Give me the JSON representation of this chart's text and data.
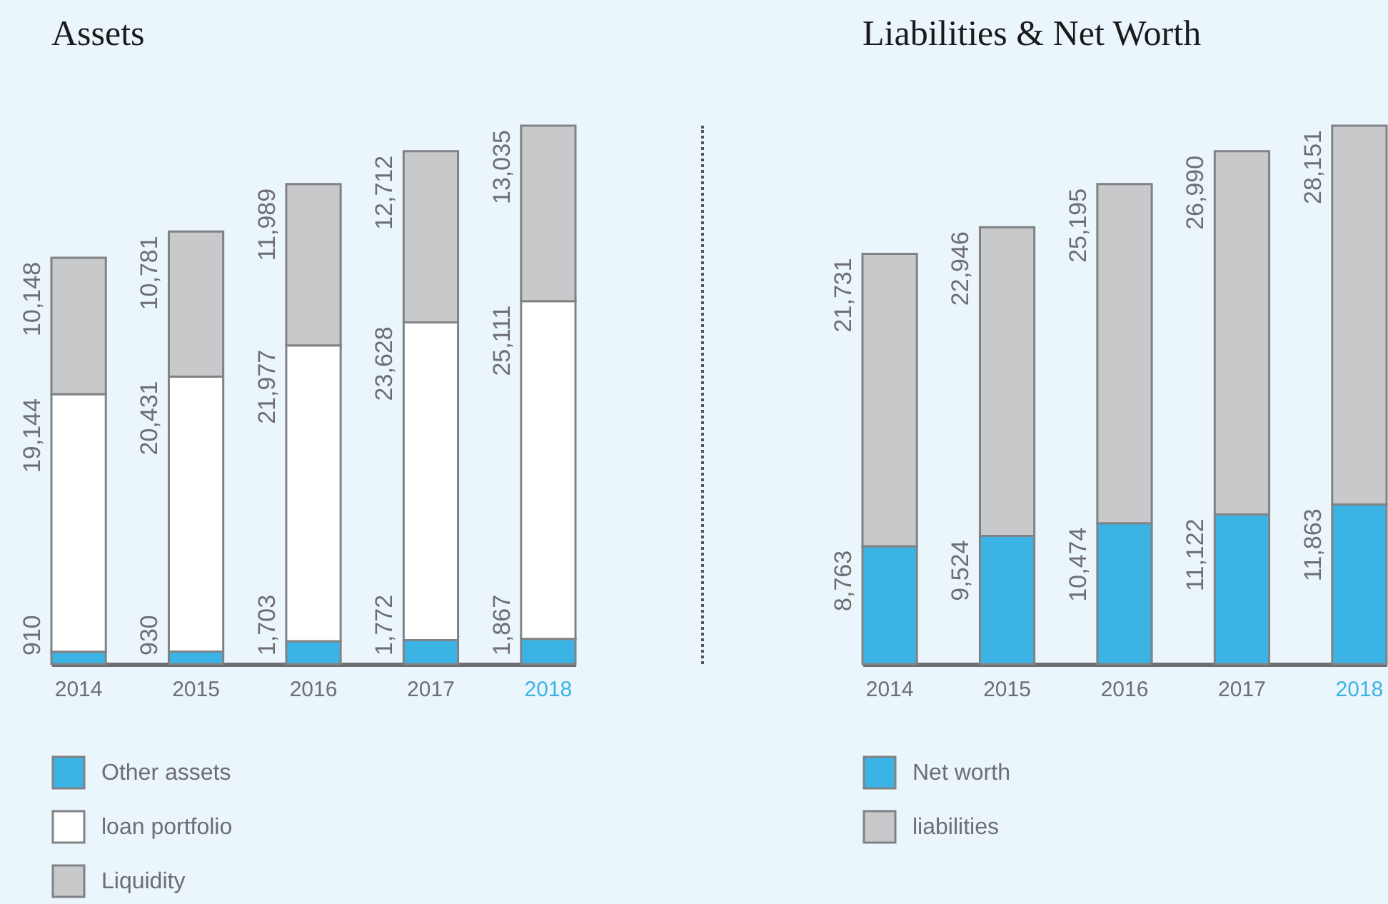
{
  "chart_data": [
    {
      "type": "bar",
      "title": "Assets",
      "categories": [
        "2014",
        "2015",
        "2016",
        "2017",
        "2018"
      ],
      "stacked": true,
      "legend": "bottom left",
      "tick_labels": "x",
      "series": [
        {
          "name": "Other assets",
          "color": "#3bb4e5",
          "values": [
            910,
            930,
            1703,
            1772,
            1867
          ],
          "value_labels": [
            "910",
            "930",
            "1,703",
            "1,772",
            "1,867"
          ]
        },
        {
          "name": "loan portfolio",
          "color": "#ffffff",
          "values": [
            19144,
            20431,
            21977,
            23628,
            25111
          ],
          "value_labels": [
            "19,144",
            "20,431",
            "21,977",
            "23,628",
            "25,111"
          ]
        },
        {
          "name": "Liquidity",
          "color": "#c8c9cb",
          "values": [
            10148,
            10781,
            11989,
            12712,
            13035
          ],
          "value_labels": [
            "10,148",
            "10,781",
            "11,989",
            "12,712",
            "13,035"
          ]
        }
      ]
    },
    {
      "type": "bar",
      "title": "Liabilities & Net Worth",
      "categories": [
        "2014",
        "2015",
        "2016",
        "2017",
        "2018"
      ],
      "stacked": true,
      "legend": "bottom left",
      "tick_labels": "x",
      "series": [
        {
          "name": "Net worth",
          "color": "#3bb4e5",
          "values": [
            8763,
            9524,
            10474,
            11122,
            11863
          ],
          "value_labels": [
            "8,763",
            "9,524",
            "10,474",
            "11,122",
            "11,863"
          ]
        },
        {
          "name": "liabilities",
          "color": "#c8c9cb",
          "values": [
            21731,
            22946,
            25195,
            26990,
            28151
          ],
          "value_labels": [
            "21,731",
            "22,946",
            "25,195",
            "26,990",
            "28,151"
          ]
        }
      ]
    }
  ]
}
